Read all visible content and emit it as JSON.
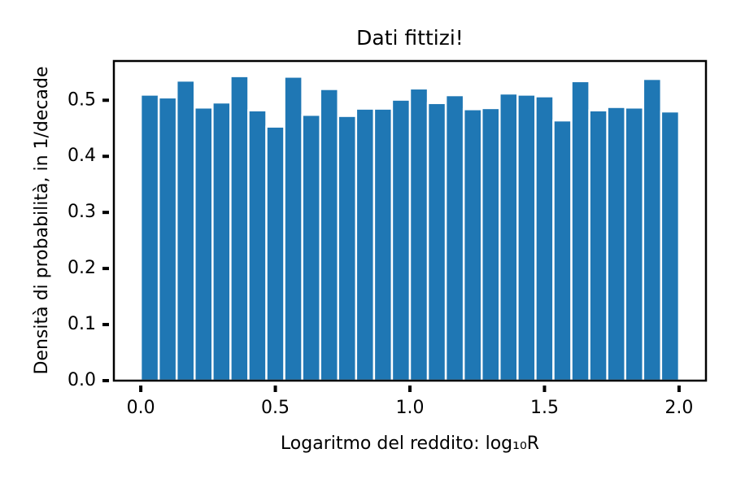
{
  "chart_data": {
    "type": "histogram",
    "title": "Dati fittizi!",
    "x_label": "Logaritmo del reddito: log₁₀R",
    "y_label": "Densità di probabilità, in 1/decade",
    "bins": [
      0,
      0.0667,
      0.1333,
      0.2,
      0.2667,
      0.3333,
      0.4,
      0.4667,
      0.5333,
      0.6,
      0.6667,
      0.7333,
      0.8,
      0.8667,
      0.9333,
      1,
      1.0667,
      1.1333,
      1.2,
      1.2667,
      1.3333,
      1.4,
      1.4667,
      1.5333,
      1.6,
      1.6667,
      1.7333,
      1.8,
      1.8667,
      1.9333,
      2
    ],
    "values": [
      0.51,
      0.505,
      0.535,
      0.487,
      0.496,
      0.543,
      0.482,
      0.453,
      0.542,
      0.474,
      0.52,
      0.472,
      0.485,
      0.485,
      0.501,
      0.521,
      0.495,
      0.509,
      0.484,
      0.486,
      0.512,
      0.51,
      0.507,
      0.464,
      0.534,
      0.482,
      0.488,
      0.487,
      0.538,
      0.48
    ],
    "color": "#1f77b4",
    "xlim": [
      -0.1,
      2.1
    ],
    "xticks": [
      {
        "value": 0,
        "label": "0.0"
      },
      0.5,
      {
        "value": 1,
        "label": "1.0"
      },
      1.5,
      {
        "value": 2,
        "label": "2.0"
      }
    ],
    "ylim": [
      0,
      0.57
    ],
    "yticks": [
      {
        "value": 0,
        "label": "0.0"
      },
      0.1,
      0.2,
      0.3,
      0.4,
      0.5
    ],
    "grid": false
  }
}
